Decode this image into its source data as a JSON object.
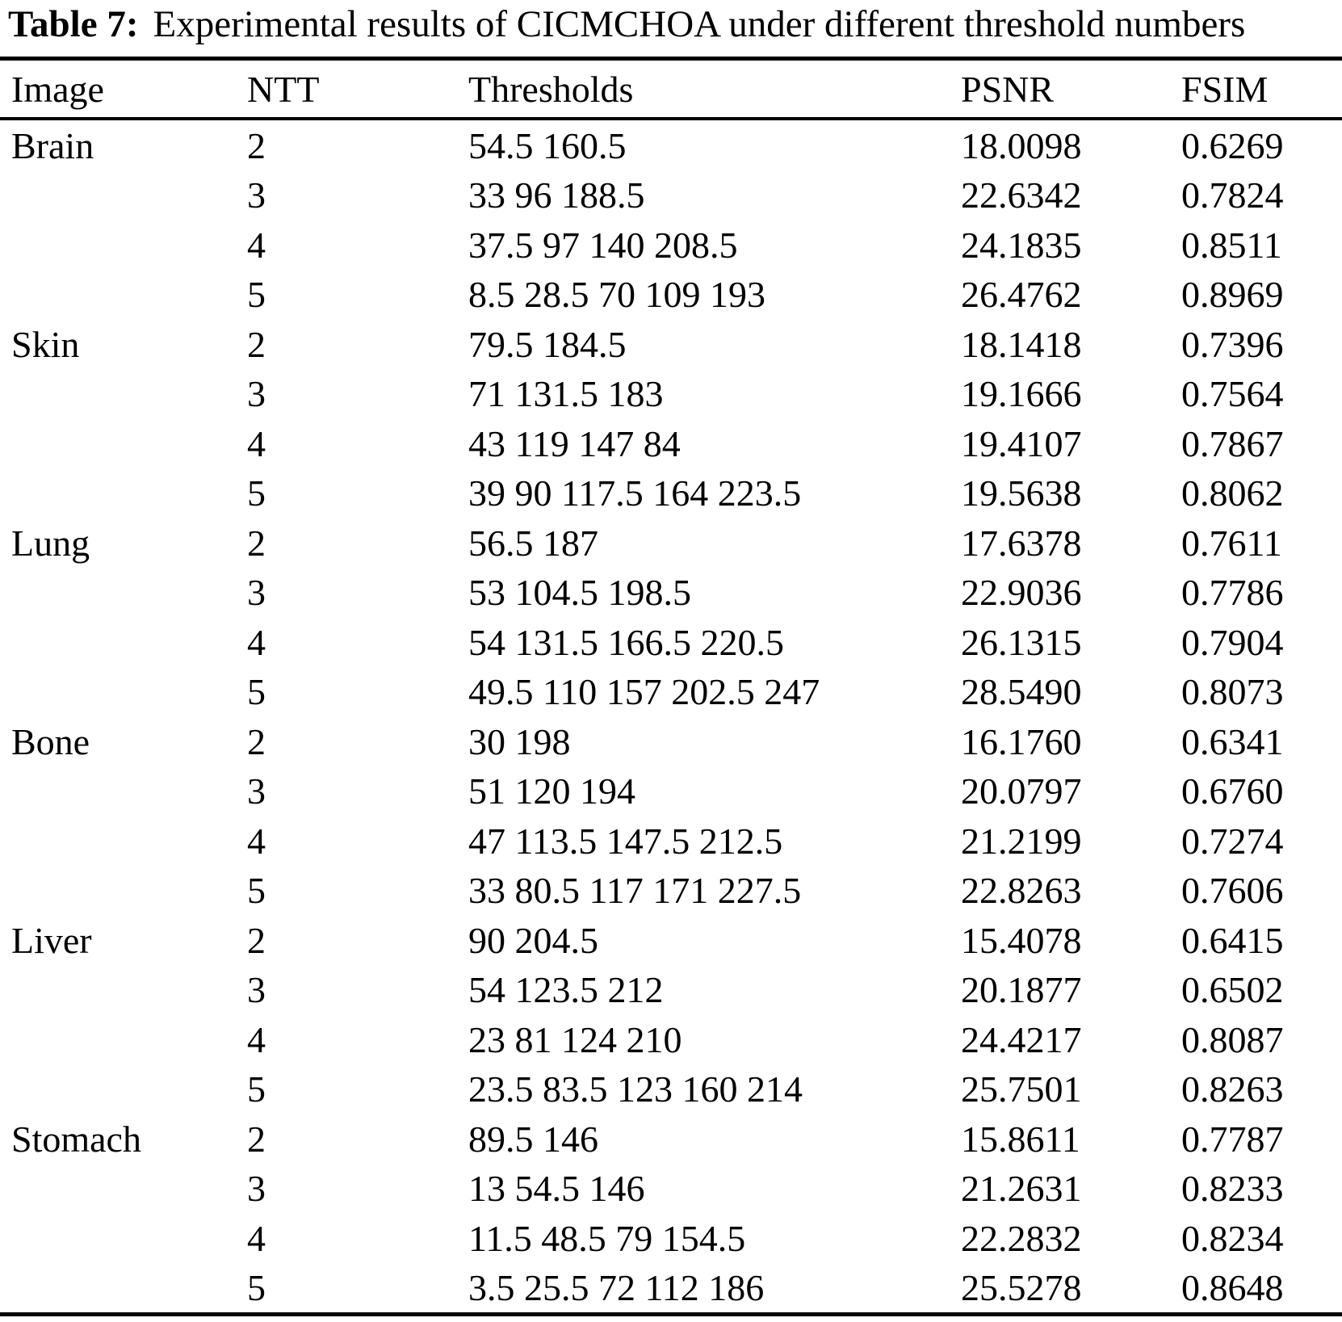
{
  "page": {
    "background_color": "#ffffff",
    "text_color": "#000000"
  },
  "caption": {
    "label": "Table 7:",
    "text": "Experimental results of CICMCHOA under different threshold numbers"
  },
  "table": {
    "columns": [
      {
        "key": "image",
        "label": "Image"
      },
      {
        "key": "ntt",
        "label": "NTT"
      },
      {
        "key": "thresholds",
        "label": "Thresholds"
      },
      {
        "key": "psnr",
        "label": "PSNR"
      },
      {
        "key": "fsim",
        "label": "FSIM"
      }
    ],
    "rows": [
      {
        "image": "Brain",
        "ntt": "2",
        "thresholds": "54.5 160.5",
        "psnr": "18.0098",
        "fsim": "0.6269"
      },
      {
        "image": "",
        "ntt": "3",
        "thresholds": "33 96 188.5",
        "psnr": "22.6342",
        "fsim": "0.7824"
      },
      {
        "image": "",
        "ntt": "4",
        "thresholds": "37.5 97 140 208.5",
        "psnr": "24.1835",
        "fsim": "0.8511"
      },
      {
        "image": "",
        "ntt": "5",
        "thresholds": "8.5 28.5 70 109 193",
        "psnr": "26.4762",
        "fsim": "0.8969"
      },
      {
        "image": "Skin",
        "ntt": "2",
        "thresholds": "79.5 184.5",
        "psnr": "18.1418",
        "fsim": "0.7396"
      },
      {
        "image": "",
        "ntt": "3",
        "thresholds": "71 131.5 183",
        "psnr": "19.1666",
        "fsim": "0.7564"
      },
      {
        "image": "",
        "ntt": "4",
        "thresholds": "43 119 147 84",
        "psnr": "19.4107",
        "fsim": "0.7867"
      },
      {
        "image": "",
        "ntt": "5",
        "thresholds": "39 90 117.5 164 223.5",
        "psnr": "19.5638",
        "fsim": "0.8062"
      },
      {
        "image": "Lung",
        "ntt": "2",
        "thresholds": "56.5 187",
        "psnr": "17.6378",
        "fsim": "0.7611"
      },
      {
        "image": "",
        "ntt": "3",
        "thresholds": "53 104.5 198.5",
        "psnr": "22.9036",
        "fsim": "0.7786"
      },
      {
        "image": "",
        "ntt": "4",
        "thresholds": "54 131.5 166.5 220.5",
        "psnr": "26.1315",
        "fsim": "0.7904"
      },
      {
        "image": "",
        "ntt": "5",
        "thresholds": "49.5 110 157 202.5 247",
        "psnr": "28.5490",
        "fsim": "0.8073"
      },
      {
        "image": "Bone",
        "ntt": "2",
        "thresholds": "30 198",
        "psnr": "16.1760",
        "fsim": "0.6341"
      },
      {
        "image": "",
        "ntt": "3",
        "thresholds": "51 120 194",
        "psnr": "20.0797",
        "fsim": "0.6760"
      },
      {
        "image": "",
        "ntt": "4",
        "thresholds": "47 113.5 147.5 212.5",
        "psnr": "21.2199",
        "fsim": "0.7274"
      },
      {
        "image": "",
        "ntt": "5",
        "thresholds": "33 80.5 117 171 227.5",
        "psnr": "22.8263",
        "fsim": "0.7606"
      },
      {
        "image": "Liver",
        "ntt": "2",
        "thresholds": "90 204.5",
        "psnr": "15.4078",
        "fsim": "0.6415"
      },
      {
        "image": "",
        "ntt": "3",
        "thresholds": "54 123.5 212",
        "psnr": "20.1877",
        "fsim": "0.6502"
      },
      {
        "image": "",
        "ntt": "4",
        "thresholds": "23 81 124 210",
        "psnr": "24.4217",
        "fsim": "0.8087"
      },
      {
        "image": "",
        "ntt": "5",
        "thresholds": "23.5 83.5 123 160 214",
        "psnr": "25.7501",
        "fsim": "0.8263"
      },
      {
        "image": "Stomach",
        "ntt": "2",
        "thresholds": "89.5 146",
        "psnr": "15.8611",
        "fsim": "0.7787"
      },
      {
        "image": "",
        "ntt": "3",
        "thresholds": "13 54.5 146",
        "psnr": "21.2631",
        "fsim": "0.8233"
      },
      {
        "image": "",
        "ntt": "4",
        "thresholds": "11.5 48.5 79 154.5",
        "psnr": "22.2832",
        "fsim": "0.8234"
      },
      {
        "image": "",
        "ntt": "5",
        "thresholds": "3.5 25.5 72 112 186",
        "psnr": "25.5278",
        "fsim": "0.8648"
      }
    ]
  }
}
